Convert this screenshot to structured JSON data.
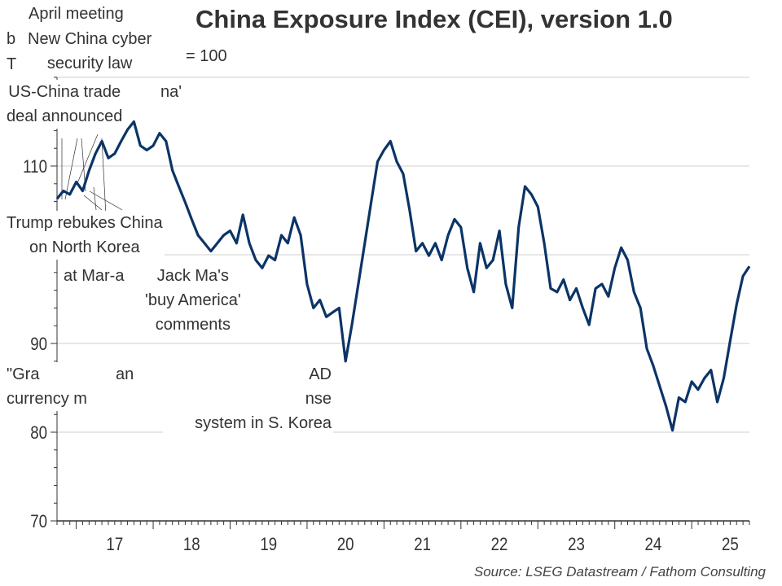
{
  "chart_data": {
    "type": "line",
    "title": "China Exposure Index (CEI), version 1.0",
    "subtitle": "= 100",
    "source": "Source: LSEG Datastream / Fathom Consulting",
    "ylim": [
      70,
      120
    ],
    "yticks": [
      70,
      80,
      90,
      110
    ],
    "xlim": [
      "2016-10",
      "2025-10"
    ],
    "xticks": [
      {
        "label": "17",
        "year": 2017
      },
      {
        "label": "18",
        "year": 2018
      },
      {
        "label": "19",
        "year": 2019
      },
      {
        "label": "20",
        "year": 2020
      },
      {
        "label": "21",
        "year": 2021
      },
      {
        "label": "22",
        "year": 2022
      },
      {
        "label": "23",
        "year": 2023
      },
      {
        "label": "24",
        "year": 2024
      },
      {
        "label": "25",
        "year": 2025
      }
    ],
    "grid": true,
    "line_color": "#0b3466",
    "series": [
      {
        "x": [
          "2016-10",
          "2016-11",
          "2016-12",
          "2017-01",
          "2017-02",
          "2017-03",
          "2017-04",
          "2017-05",
          "2017-06",
          "2017-07",
          "2017-08",
          "2017-09",
          "2017-10",
          "2017-11",
          "2017-12",
          "2018-01",
          "2018-02",
          "2018-03",
          "2018-04",
          "2018-05",
          "2018-06",
          "2018-07",
          "2018-08",
          "2018-09",
          "2018-10",
          "2018-11",
          "2018-12",
          "2019-01",
          "2019-02",
          "2019-03",
          "2019-04",
          "2019-05",
          "2019-06",
          "2019-07",
          "2019-08",
          "2019-09",
          "2019-10",
          "2019-11",
          "2019-12",
          "2020-01",
          "2020-02",
          "2020-03",
          "2020-04",
          "2020-05",
          "2020-06",
          "2020-07",
          "2020-08",
          "2020-09",
          "2020-10",
          "2020-11",
          "2020-12",
          "2021-01",
          "2021-02",
          "2021-03",
          "2021-04",
          "2021-05",
          "2021-06",
          "2021-07",
          "2021-08",
          "2021-09",
          "2021-10",
          "2021-11",
          "2021-12",
          "2022-01",
          "2022-02",
          "2022-03",
          "2022-04",
          "2022-05",
          "2022-06",
          "2022-07",
          "2022-08",
          "2022-09",
          "2022-10",
          "2022-11",
          "2022-12",
          "2023-01",
          "2023-02",
          "2023-03",
          "2023-04",
          "2023-05",
          "2023-06",
          "2023-07",
          "2023-08",
          "2023-09",
          "2023-10",
          "2023-11",
          "2023-12",
          "2024-01",
          "2024-02",
          "2024-03",
          "2024-04",
          "2024-05",
          "2024-06",
          "2024-07",
          "2024-08",
          "2024-09",
          "2024-10",
          "2024-11",
          "2024-12",
          "2025-01",
          "2025-02",
          "2025-03",
          "2025-04",
          "2025-05",
          "2025-06",
          "2025-07",
          "2025-08",
          "2025-09",
          "2025-10"
        ],
        "values": [
          106.3,
          107.2,
          106.8,
          108.2,
          107.2,
          109.5,
          111.4,
          112.8,
          110.9,
          111.4,
          112.8,
          114.1,
          115.0,
          112.3,
          111.8,
          112.3,
          113.7,
          112.8,
          109.5,
          107.7,
          105.9,
          104.0,
          102.2,
          101.3,
          100.4,
          101.3,
          102.2,
          102.7,
          101.3,
          104.5,
          101.3,
          99.4,
          98.5,
          99.9,
          99.4,
          102.2,
          101.3,
          104.2,
          102.2,
          96.7,
          94.0,
          94.9,
          93.0,
          93.5,
          94.0,
          88.0,
          92.1,
          96.7,
          101.3,
          105.9,
          110.5,
          111.8,
          112.8,
          110.5,
          109.1,
          105.0,
          100.4,
          101.3,
          99.9,
          101.3,
          99.4,
          102.2,
          104.0,
          103.1,
          98.5,
          95.8,
          101.3,
          98.5,
          99.4,
          102.7,
          96.7,
          94.0,
          103.1,
          107.7,
          106.8,
          105.4,
          101.3,
          96.2,
          95.8,
          97.2,
          94.9,
          96.2,
          94.0,
          92.1,
          96.2,
          96.7,
          95.3,
          98.5,
          100.8,
          99.4,
          95.8,
          94.0,
          89.4,
          87.5,
          85.2,
          82.9,
          80.2,
          83.9,
          83.4,
          85.7,
          84.8,
          86.1,
          87.0,
          83.4,
          86.1,
          90.3,
          94.4,
          97.6,
          98.7
        ]
      }
    ],
    "annotations": [
      {
        "id": "b",
        "lines": [
          "b"
        ]
      },
      {
        "id": "th",
        "lines": [
          "T"
        ]
      },
      {
        "id": "na",
        "lines": [
          "na'"
        ]
      },
      {
        "id": "grand",
        "lines": [
          "\"Gra",
          "currency m"
        ]
      },
      {
        "id": "thaad",
        "lines": [
          "AD",
          "nse",
          "system in S. Korea"
        ]
      },
      {
        "id": "an",
        "lines": [
          "an"
        ]
      },
      {
        "id": "maralago",
        "lines": [
          "at Mar-a"
        ]
      },
      {
        "id": "trump",
        "lines": [
          "Trump rebukes China",
          "on North Korea"
        ]
      },
      {
        "id": "jackma",
        "lines": [
          "Jack Ma's",
          "'buy America'",
          "comments"
        ]
      },
      {
        "id": "trade",
        "lines": [
          "US-China trade",
          "deal announced"
        ]
      },
      {
        "id": "cyber",
        "lines": [
          "New China cyber",
          "security law"
        ]
      },
      {
        "id": "april",
        "lines": [
          "April meeting"
        ]
      }
    ]
  }
}
